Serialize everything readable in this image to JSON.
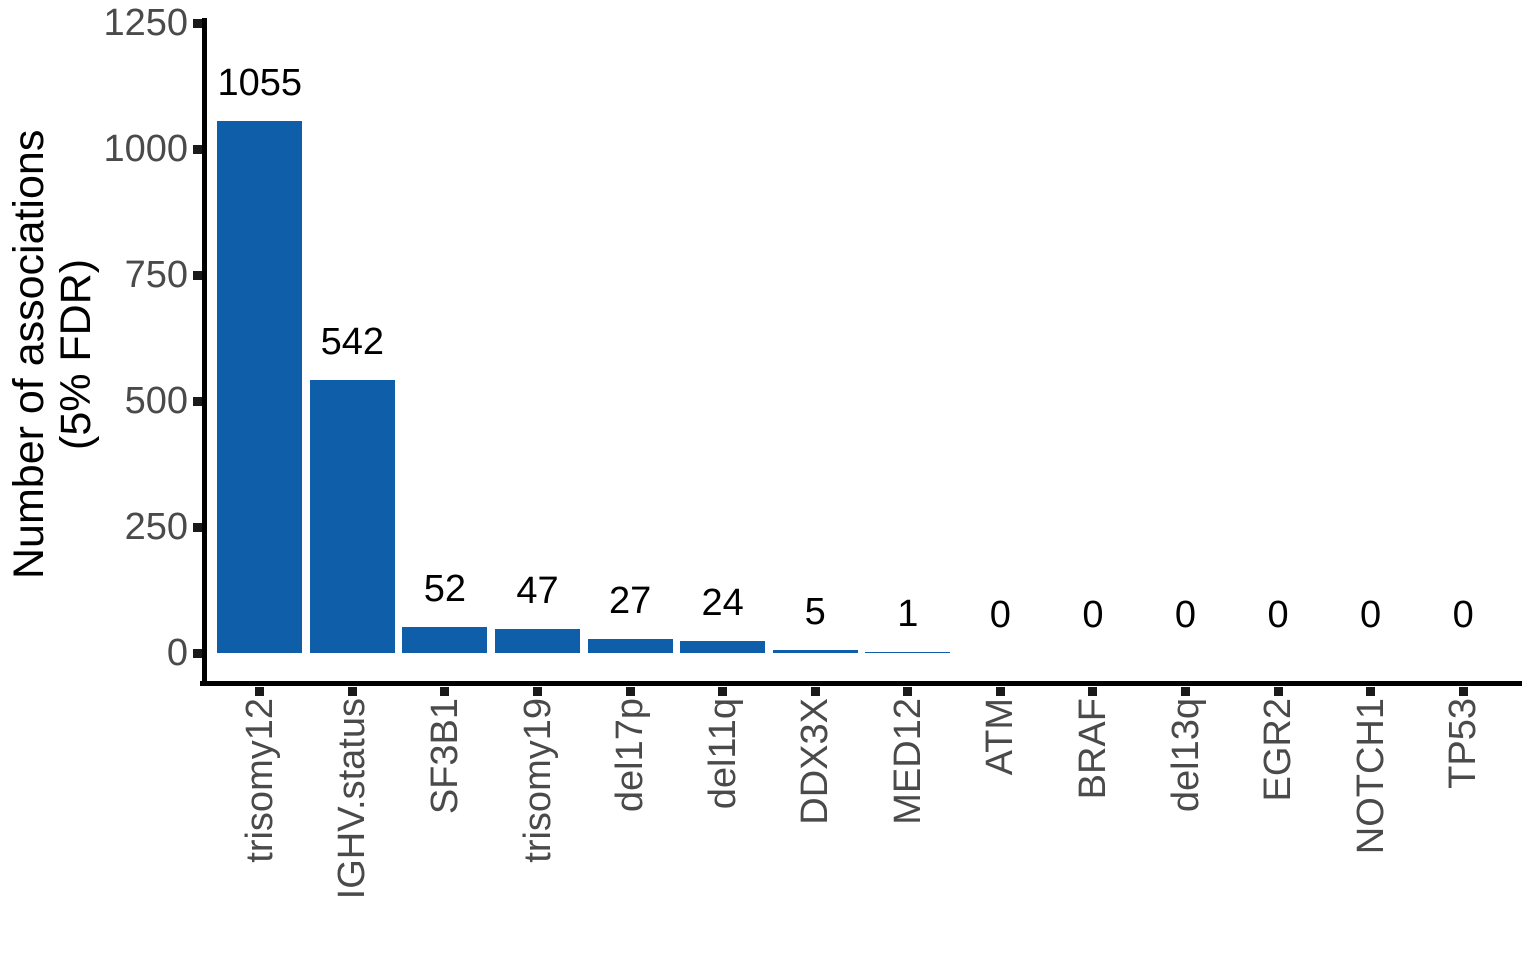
{
  "chart_data": {
    "type": "bar",
    "title": "",
    "xlabel": "",
    "ylabel": "Number of associations (5% FDR)",
    "ylabel_lines": [
      "Number of associations",
      "(5% FDR)"
    ],
    "categories": [
      "trisomy12",
      "IGHV.status",
      "SF3B1",
      "trisomy19",
      "del17p",
      "del11q",
      "DDX3X",
      "MED12",
      "ATM",
      "BRAF",
      "del13q",
      "EGR2",
      "NOTCH1",
      "TP53"
    ],
    "values": [
      1055,
      542,
      52,
      47,
      27,
      24,
      5,
      1,
      0,
      0,
      0,
      0,
      0,
      0
    ],
    "value_labels": [
      "1055",
      "542",
      "52",
      "47",
      "27",
      "24",
      "5",
      "1",
      "0",
      "0",
      "0",
      "0",
      "0",
      "0"
    ],
    "yticks": [
      0,
      250,
      500,
      750,
      1000,
      1250
    ],
    "ytick_labels": [
      "0",
      "250",
      "500",
      "750",
      "1000",
      "1250"
    ],
    "ylim": [
      0,
      1250
    ],
    "grid": false,
    "legend": false,
    "bar_labels_rotated_90": true,
    "colors": {
      "bar": "#0F5EA9",
      "axis_text": "#4a4a4a",
      "axis_title": "#000000",
      "value_label": "#000000",
      "axis_line": "#000000",
      "background": "#ffffff"
    }
  }
}
